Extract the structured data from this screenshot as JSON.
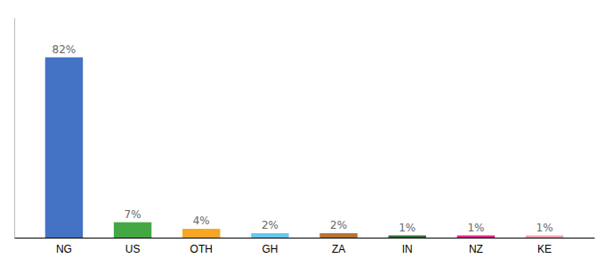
{
  "chart_data": {
    "type": "bar",
    "categories": [
      "NG",
      "US",
      "OTH",
      "GH",
      "ZA",
      "IN",
      "NZ",
      "KE"
    ],
    "values": [
      82,
      7,
      4,
      2,
      2,
      1,
      1,
      1
    ],
    "value_labels": [
      "82%",
      "7%",
      "4%",
      "2%",
      "2%",
      "1%",
      "1%",
      "1%"
    ],
    "colors": [
      "#4472c4",
      "#43a843",
      "#f5a623",
      "#64c8f0",
      "#b87333",
      "#2d6e2d",
      "#e91e8c",
      "#f4a0b0"
    ],
    "ylim": [
      0,
      100
    ],
    "data_labels": true,
    "tick_labels": "x"
  }
}
